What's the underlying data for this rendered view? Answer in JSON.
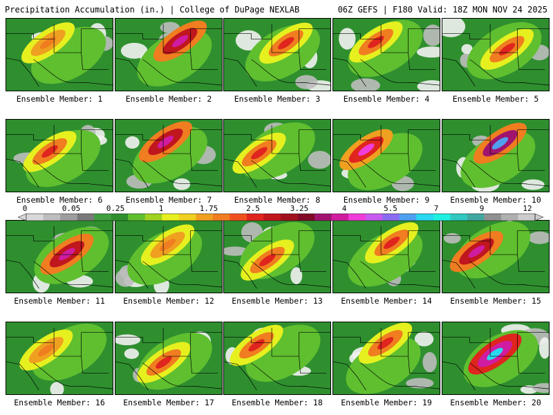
{
  "header": {
    "left_title": "Precipitation Accumulation (in.) | College of DuPage NEXLAB",
    "right_title": "06Z GEFS | F180 Valid: 18Z MON NOV 24 2025"
  },
  "colorbar": {
    "tick_labels": [
      "0",
      "0.05",
      "0.25",
      "1",
      "1.75",
      "2.5",
      "3.25",
      "4",
      "5.5",
      "7",
      "9",
      "12"
    ],
    "colors": [
      "#d9d9d9",
      "#bdbdbd",
      "#9e9e9e",
      "#7a7a7a",
      "#3f9f3f",
      "#2f8f2f",
      "#5fbf2f",
      "#9fd21f",
      "#e6f01f",
      "#f0d020",
      "#f0a020",
      "#f07d20",
      "#f0501e",
      "#e0241e",
      "#c0161e",
      "#a0101e",
      "#800a28",
      "#a01470",
      "#d01ca0",
      "#f03cd8",
      "#c85af0",
      "#8c6cf0",
      "#50a0f0",
      "#28d8f0",
      "#20f0e0",
      "#30c8c0",
      "#40a8a0",
      "#909090",
      "#b0b0b0",
      "#cccccc"
    ]
  },
  "panels": [
    {
      "label": "Ensemble Member: 1",
      "peak": "orange"
    },
    {
      "label": "Ensemble Member: 2",
      "peak": "purple"
    },
    {
      "label": "Ensemble Member: 3",
      "peak": "red"
    },
    {
      "label": "Ensemble Member: 4",
      "peak": "red"
    },
    {
      "label": "Ensemble Member: 5",
      "peak": "red"
    },
    {
      "label": "Ensemble Member: 6",
      "peak": "red"
    },
    {
      "label": "Ensemble Member: 7",
      "peak": "purple"
    },
    {
      "label": "Ensemble Member: 8",
      "peak": "red"
    },
    {
      "label": "Ensemble Member: 9",
      "peak": "magenta"
    },
    {
      "label": "Ensemble Member: 10",
      "peak": "blue"
    },
    {
      "label": "Ensemble Member: 11",
      "peak": "purple"
    },
    {
      "label": "Ensemble Member: 12",
      "peak": "orange"
    },
    {
      "label": "Ensemble Member: 13",
      "peak": "red"
    },
    {
      "label": "Ensemble Member: 14",
      "peak": "red"
    },
    {
      "label": "Ensemble Member: 15",
      "peak": "purple"
    },
    {
      "label": "Ensemble Member: 16",
      "peak": "orange"
    },
    {
      "label": "Ensemble Member: 17",
      "peak": "red"
    },
    {
      "label": "Ensemble Member: 18",
      "peak": "red"
    },
    {
      "label": "Ensemble Member: 19",
      "peak": "red"
    },
    {
      "label": "Ensemble Member: 20",
      "peak": "cyan"
    }
  ]
}
